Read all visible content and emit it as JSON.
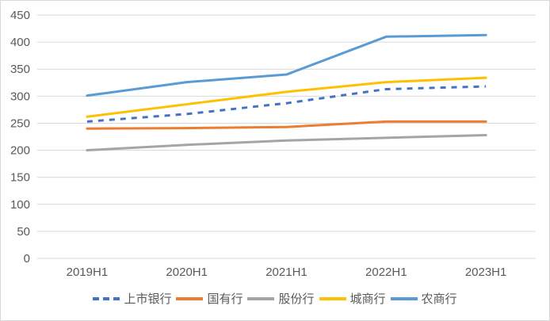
{
  "chart_data": {
    "type": "line",
    "categories": [
      "2019H1",
      "2020H1",
      "2021H1",
      "2022H1",
      "2023H1"
    ],
    "series": [
      {
        "name": "上市银行",
        "values": [
          253,
          267,
          287,
          313,
          318
        ],
        "color": "#4472C4",
        "style": "dashed"
      },
      {
        "name": "国有行",
        "values": [
          240,
          241,
          243,
          253,
          253
        ],
        "color": "#ED7D31",
        "style": "solid"
      },
      {
        "name": "股份行",
        "values": [
          200,
          210,
          218,
          223,
          228
        ],
        "color": "#A5A5A5",
        "style": "solid"
      },
      {
        "name": "城商行",
        "values": [
          262,
          285,
          308,
          326,
          334
        ],
        "color": "#FFC000",
        "style": "solid"
      },
      {
        "name": "农商行",
        "values": [
          301,
          326,
          340,
          410,
          413
        ],
        "color": "#5B9BD5",
        "style": "solid"
      }
    ],
    "ylim": [
      0,
      450
    ],
    "ytick_interval": 50,
    "yticks": [
      0,
      50,
      100,
      150,
      200,
      250,
      300,
      350,
      400,
      450
    ],
    "grid": true,
    "legend_position": "bottom"
  },
  "styles": {
    "text_color": "#595959",
    "grid_color": "#D9D9D9",
    "border_color": "#D9D9D9",
    "background_color": "#FFFFFF"
  }
}
